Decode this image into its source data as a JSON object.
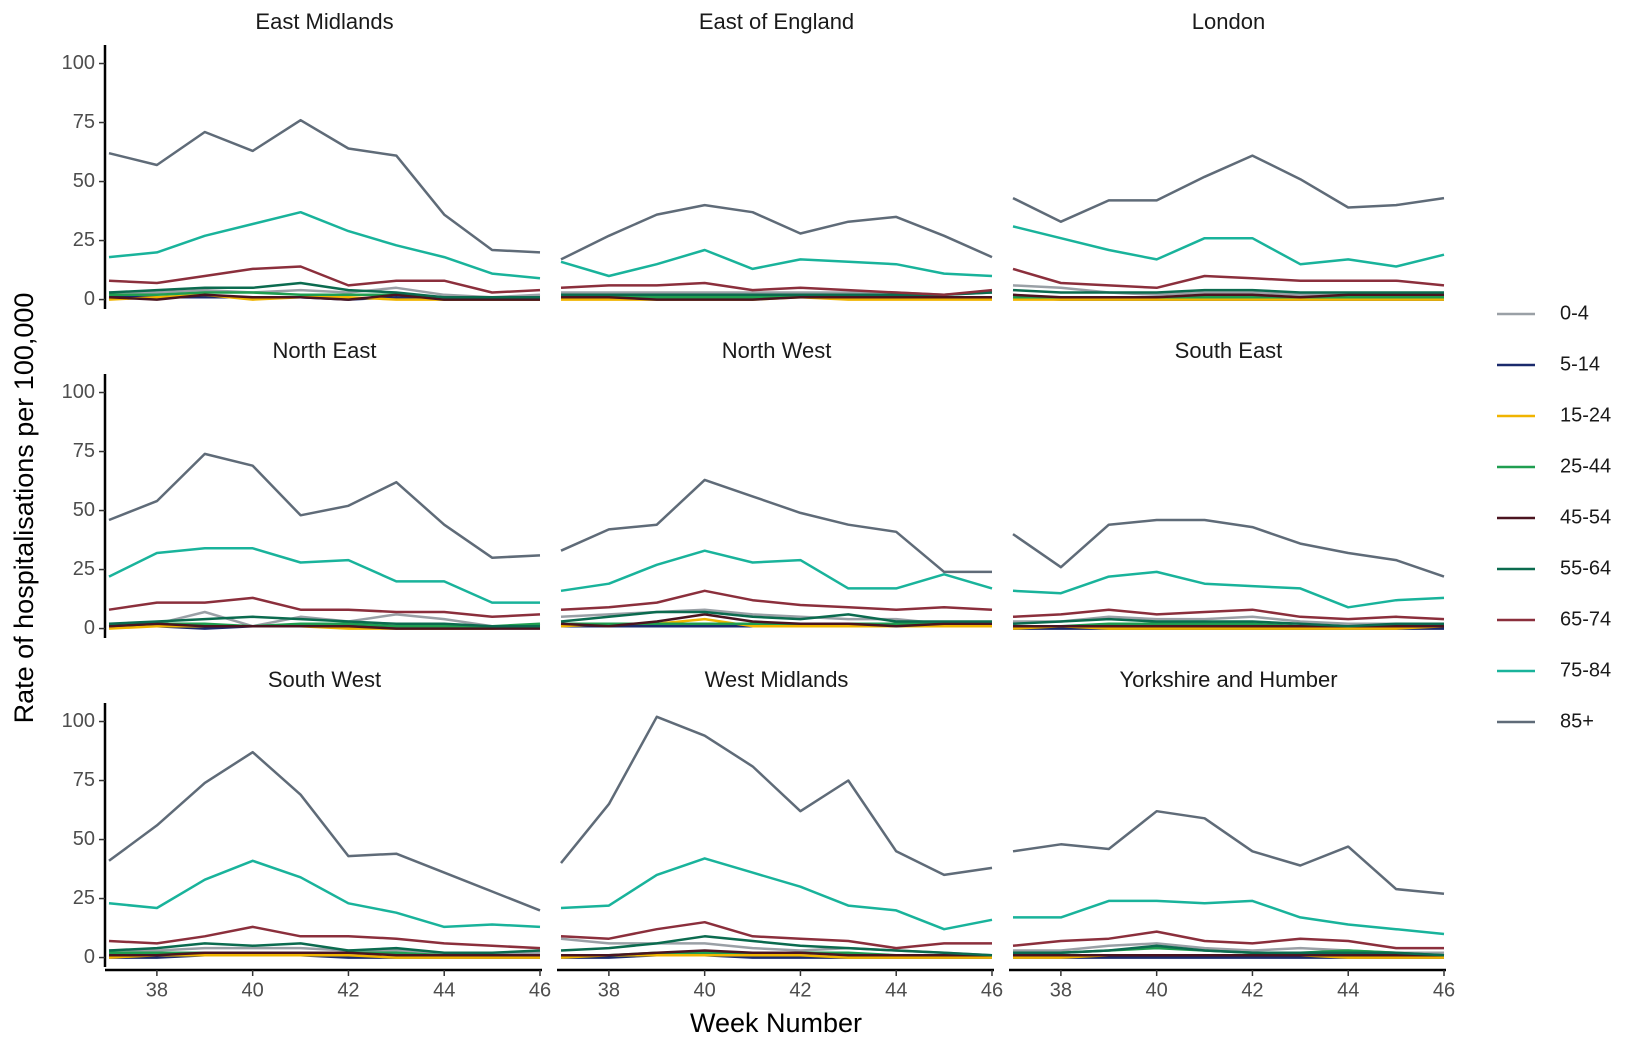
{
  "axes": {
    "xlabel": "Week Number",
    "ylabel": "Rate of hospitalisations per 100,000",
    "x": [
      37,
      38,
      39,
      40,
      41,
      42,
      43,
      44,
      45,
      46
    ],
    "xlim": [
      37,
      46
    ],
    "xticks": [
      38,
      40,
      42,
      44,
      46
    ],
    "ylim": [
      -4,
      107
    ],
    "yticks": [
      0,
      25,
      50,
      75,
      100
    ]
  },
  "groups": [
    {
      "name": "0-4",
      "color": "#9aa0a6"
    },
    {
      "name": "5-14",
      "color": "#1a2a6c"
    },
    {
      "name": "15-24",
      "color": "#f0b400"
    },
    {
      "name": "25-44",
      "color": "#1f9e50"
    },
    {
      "name": "45-54",
      "color": "#4a1420"
    },
    {
      "name": "55-64",
      "color": "#0b6b4f"
    },
    {
      "name": "65-74",
      "color": "#8b2f3c"
    },
    {
      "name": "75-84",
      "color": "#19b39b"
    },
    {
      "name": "85+",
      "color": "#5f6b78"
    }
  ],
  "chart_data": [
    {
      "type": "line",
      "title": "East Midlands",
      "series": [
        {
          "values": [
            3,
            3,
            4,
            3,
            4,
            3,
            5,
            2,
            1,
            2
          ]
        },
        {
          "values": [
            1,
            1,
            1,
            1,
            1,
            0,
            1,
            0,
            0,
            0
          ]
        },
        {
          "values": [
            0,
            1,
            2,
            0,
            1,
            1,
            0,
            0,
            0,
            0
          ]
        },
        {
          "values": [
            2,
            2,
            3,
            3,
            2,
            2,
            2,
            1,
            1,
            1
          ]
        },
        {
          "values": [
            1,
            0,
            2,
            1,
            1,
            0,
            2,
            0,
            0,
            0
          ]
        },
        {
          "values": [
            3,
            4,
            5,
            5,
            7,
            4,
            3,
            1,
            1,
            1
          ]
        },
        {
          "values": [
            8,
            7,
            10,
            13,
            14,
            6,
            8,
            8,
            3,
            4
          ]
        },
        {
          "values": [
            18,
            20,
            27,
            32,
            37,
            29,
            23,
            18,
            11,
            9
          ]
        },
        {
          "values": [
            62,
            57,
            71,
            63,
            76,
            64,
            61,
            36,
            21,
            20
          ]
        }
      ]
    },
    {
      "type": "line",
      "title": "East of England",
      "series": [
        {
          "values": [
            3,
            3,
            3,
            3,
            3,
            3,
            3,
            3,
            2,
            3
          ]
        },
        {
          "values": [
            1,
            1,
            1,
            1,
            1,
            1,
            1,
            1,
            1,
            1
          ]
        },
        {
          "values": [
            0,
            0,
            0,
            0,
            0,
            1,
            0,
            0,
            0,
            0
          ]
        },
        {
          "values": [
            1,
            1,
            1,
            1,
            1,
            1,
            1,
            1,
            1,
            1
          ]
        },
        {
          "values": [
            1,
            1,
            0,
            0,
            0,
            1,
            1,
            1,
            1,
            1
          ]
        },
        {
          "values": [
            2,
            2,
            2,
            2,
            2,
            2,
            2,
            2,
            2,
            3
          ]
        },
        {
          "values": [
            5,
            6,
            6,
            7,
            4,
            5,
            4,
            3,
            2,
            4
          ]
        },
        {
          "values": [
            16,
            10,
            15,
            21,
            13,
            17,
            16,
            15,
            11,
            10
          ]
        },
        {
          "values": [
            17,
            27,
            36,
            40,
            37,
            28,
            33,
            35,
            27,
            18
          ]
        }
      ]
    },
    {
      "type": "line",
      "title": "London",
      "series": [
        {
          "values": [
            6,
            5,
            3,
            2,
            3,
            3,
            2,
            2,
            1,
            2
          ]
        },
        {
          "values": [
            1,
            0,
            0,
            0,
            0,
            0,
            0,
            0,
            0,
            0
          ]
        },
        {
          "values": [
            0,
            0,
            0,
            0,
            0,
            0,
            0,
            0,
            0,
            0
          ]
        },
        {
          "values": [
            1,
            1,
            1,
            1,
            1,
            1,
            1,
            1,
            1,
            1
          ]
        },
        {
          "values": [
            2,
            1,
            1,
            1,
            2,
            2,
            1,
            2,
            2,
            2
          ]
        },
        {
          "values": [
            4,
            3,
            3,
            3,
            4,
            4,
            3,
            3,
            3,
            3
          ]
        },
        {
          "values": [
            13,
            7,
            6,
            5,
            10,
            9,
            8,
            8,
            8,
            6
          ]
        },
        {
          "values": [
            31,
            26,
            21,
            17,
            26,
            26,
            15,
            17,
            14,
            19
          ]
        },
        {
          "values": [
            43,
            33,
            42,
            42,
            52,
            61,
            51,
            39,
            40,
            43
          ]
        }
      ]
    },
    {
      "type": "line",
      "title": "North East",
      "series": [
        {
          "values": [
            2,
            2,
            7,
            1,
            5,
            3,
            6,
            4,
            1,
            1
          ]
        },
        {
          "values": [
            1,
            1,
            0,
            1,
            1,
            1,
            1,
            1,
            1,
            1
          ]
        },
        {
          "values": [
            0,
            1,
            1,
            1,
            1,
            0,
            0,
            0,
            0,
            1
          ]
        },
        {
          "values": [
            2,
            2,
            2,
            1,
            2,
            2,
            1,
            1,
            1,
            2
          ]
        },
        {
          "values": [
            1,
            2,
            1,
            1,
            1,
            1,
            0,
            0,
            0,
            0
          ]
        },
        {
          "values": [
            2,
            3,
            4,
            5,
            4,
            3,
            2,
            2,
            1,
            1
          ]
        },
        {
          "values": [
            8,
            11,
            11,
            13,
            8,
            8,
            7,
            7,
            5,
            6
          ]
        },
        {
          "values": [
            22,
            32,
            34,
            34,
            28,
            29,
            20,
            20,
            11,
            11
          ]
        },
        {
          "values": [
            46,
            54,
            74,
            69,
            48,
            52,
            62,
            44,
            30,
            31
          ]
        }
      ]
    },
    {
      "type": "line",
      "title": "North West",
      "series": [
        {
          "values": [
            5,
            6,
            7,
            8,
            6,
            5,
            4,
            4,
            2,
            2
          ]
        },
        {
          "values": [
            1,
            1,
            1,
            1,
            1,
            1,
            1,
            1,
            1,
            1
          ]
        },
        {
          "values": [
            1,
            2,
            2,
            4,
            1,
            1,
            1,
            1,
            1,
            1
          ]
        },
        {
          "values": [
            2,
            2,
            2,
            2,
            2,
            2,
            2,
            2,
            2,
            2
          ]
        },
        {
          "values": [
            2,
            1,
            3,
            6,
            3,
            2,
            2,
            1,
            2,
            2
          ]
        },
        {
          "values": [
            3,
            5,
            7,
            7,
            5,
            4,
            6,
            3,
            3,
            3
          ]
        },
        {
          "values": [
            8,
            9,
            11,
            16,
            12,
            10,
            9,
            8,
            9,
            8
          ]
        },
        {
          "values": [
            16,
            19,
            27,
            33,
            28,
            29,
            17,
            17,
            23,
            17
          ]
        },
        {
          "values": [
            33,
            42,
            44,
            63,
            56,
            49,
            44,
            41,
            24,
            24
          ]
        }
      ]
    },
    {
      "type": "line",
      "title": "South East",
      "series": [
        {
          "values": [
            3,
            3,
            5,
            4,
            4,
            5,
            3,
            2,
            2,
            2
          ]
        },
        {
          "values": [
            0,
            0,
            0,
            0,
            0,
            0,
            0,
            0,
            0,
            0
          ]
        },
        {
          "values": [
            0,
            1,
            0,
            0,
            0,
            0,
            0,
            0,
            0,
            1
          ]
        },
        {
          "values": [
            1,
            1,
            2,
            2,
            2,
            2,
            1,
            1,
            1,
            1
          ]
        },
        {
          "values": [
            1,
            1,
            1,
            1,
            1,
            1,
            1,
            1,
            1,
            1
          ]
        },
        {
          "values": [
            2,
            3,
            4,
            3,
            3,
            3,
            2,
            1,
            2,
            2
          ]
        },
        {
          "values": [
            5,
            6,
            8,
            6,
            7,
            8,
            5,
            4,
            5,
            4
          ]
        },
        {
          "values": [
            16,
            15,
            22,
            24,
            19,
            18,
            17,
            9,
            12,
            13
          ]
        },
        {
          "values": [
            40,
            26,
            44,
            46,
            46,
            43,
            36,
            32,
            29,
            22
          ]
        }
      ]
    },
    {
      "type": "line",
      "title": "South West",
      "series": [
        {
          "values": [
            3,
            3,
            4,
            4,
            4,
            3,
            3,
            2,
            2,
            2
          ]
        },
        {
          "values": [
            0,
            0,
            1,
            1,
            1,
            0,
            0,
            0,
            0,
            0
          ]
        },
        {
          "values": [
            0,
            1,
            1,
            1,
            1,
            1,
            0,
            0,
            0,
            0
          ]
        },
        {
          "values": [
            2,
            2,
            2,
            2,
            2,
            2,
            2,
            1,
            1,
            1
          ]
        },
        {
          "values": [
            1,
            1,
            2,
            2,
            2,
            2,
            1,
            1,
            1,
            1
          ]
        },
        {
          "values": [
            3,
            4,
            6,
            5,
            6,
            3,
            4,
            2,
            2,
            3
          ]
        },
        {
          "values": [
            7,
            6,
            9,
            13,
            9,
            9,
            8,
            6,
            5,
            4
          ]
        },
        {
          "values": [
            23,
            21,
            33,
            41,
            34,
            23,
            19,
            13,
            14,
            13
          ]
        },
        {
          "values": [
            41,
            56,
            74,
            87,
            69,
            43,
            44,
            36,
            28,
            20
          ]
        }
      ]
    },
    {
      "type": "line",
      "title": "West Midlands",
      "series": [
        {
          "values": [
            8,
            6,
            6,
            6,
            4,
            3,
            4,
            3,
            2,
            1
          ]
        },
        {
          "values": [
            0,
            0,
            1,
            1,
            0,
            0,
            0,
            0,
            0,
            0
          ]
        },
        {
          "values": [
            0,
            1,
            1,
            1,
            1,
            1,
            0,
            0,
            0,
            0
          ]
        },
        {
          "values": [
            1,
            1,
            2,
            2,
            2,
            2,
            2,
            1,
            1,
            1
          ]
        },
        {
          "values": [
            1,
            1,
            2,
            3,
            2,
            2,
            1,
            1,
            1,
            1
          ]
        },
        {
          "values": [
            3,
            4,
            6,
            9,
            7,
            5,
            4,
            3,
            2,
            1
          ]
        },
        {
          "values": [
            9,
            8,
            12,
            15,
            9,
            8,
            7,
            4,
            6,
            6
          ]
        },
        {
          "values": [
            21,
            22,
            35,
            42,
            36,
            30,
            22,
            20,
            12,
            16
          ]
        },
        {
          "values": [
            40,
            65,
            102,
            94,
            81,
            62,
            75,
            45,
            35,
            38
          ]
        }
      ]
    },
    {
      "type": "line",
      "title": "Yorkshire and Humber",
      "series": [
        {
          "values": [
            3,
            3,
            5,
            6,
            4,
            3,
            4,
            3,
            2,
            2
          ]
        },
        {
          "values": [
            0,
            0,
            0,
            0,
            0,
            0,
            0,
            0,
            0,
            0
          ]
        },
        {
          "values": [
            0,
            0,
            1,
            1,
            1,
            1,
            1,
            0,
            0,
            0
          ]
        },
        {
          "values": [
            2,
            2,
            3,
            4,
            3,
            2,
            2,
            3,
            2,
            1
          ]
        },
        {
          "values": [
            1,
            1,
            1,
            1,
            1,
            1,
            1,
            1,
            1,
            1
          ]
        },
        {
          "values": [
            2,
            2,
            3,
            5,
            3,
            2,
            2,
            2,
            2,
            1
          ]
        },
        {
          "values": [
            5,
            7,
            8,
            11,
            7,
            6,
            8,
            7,
            4,
            4
          ]
        },
        {
          "values": [
            17,
            17,
            24,
            24,
            23,
            24,
            17,
            14,
            12,
            10
          ]
        },
        {
          "values": [
            45,
            48,
            46,
            62,
            59,
            45,
            39,
            47,
            29,
            27
          ]
        }
      ]
    }
  ]
}
